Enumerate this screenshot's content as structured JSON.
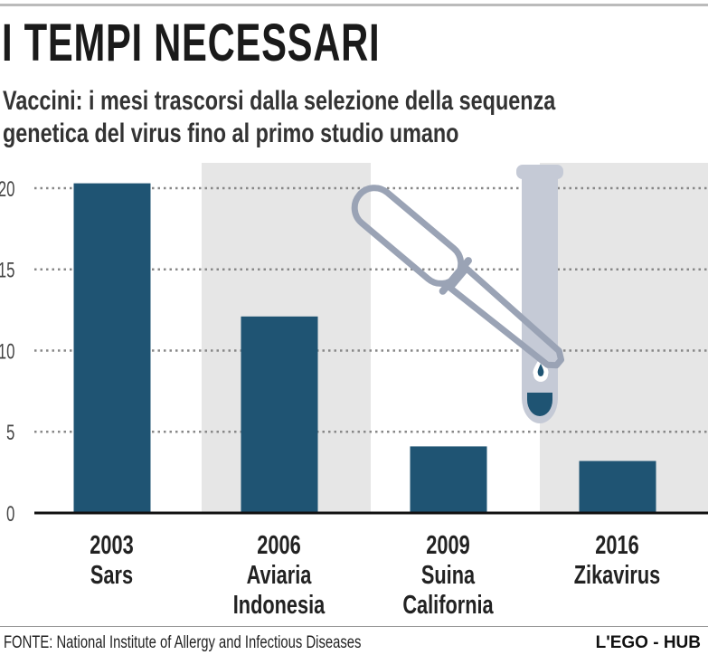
{
  "header": {
    "title": "I TEMPI NECESSARI",
    "subtitle_line1": "Vaccini: i mesi trascorsi dalla selezione della sequenza",
    "subtitle_line2": "genetica del virus fino al primo studio umano"
  },
  "chart_data": {
    "type": "bar",
    "title": "I TEMPI NECESSARI",
    "categories": [
      {
        "year": "2003",
        "name": "Sars",
        "name2": ""
      },
      {
        "year": "2006",
        "name": "Aviaria",
        "name2": "Indonesia"
      },
      {
        "year": "2009",
        "name": "Suina",
        "name2": "California"
      },
      {
        "year": "2016",
        "name": "Zikavirus",
        "name2": ""
      }
    ],
    "values": [
      20.3,
      12.1,
      4.1,
      3.2
    ],
    "ylim": [
      0,
      20
    ],
    "yticks": [
      0,
      5,
      10,
      15,
      20
    ],
    "grid": "dotted horizontal",
    "bar_color": "#1f5473",
    "band_color": "#e6e6e6",
    "illustration": "pipette-and-test-tube-icon"
  },
  "footer": {
    "source_label": "FONTE:",
    "source_text": "National Institute of Allergy and Infectious Diseases",
    "brand": "L'EGO - HUB"
  }
}
